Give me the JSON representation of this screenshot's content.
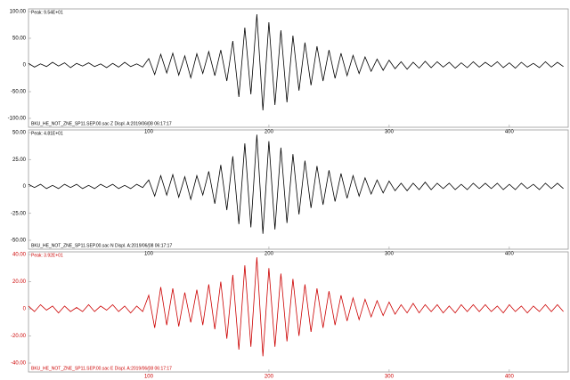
{
  "chart_data": [
    {
      "type": "line",
      "header": "Peak: 9.54E+01",
      "footer": "BKU_HE_NOT_ZNE_SP11.SEP.00.sac Z Displ. A:2019/06/08 06:17:17",
      "xlim": [
        0,
        449
      ],
      "xticks": [
        100,
        200,
        300,
        400
      ],
      "ylim": [
        -100,
        100
      ],
      "yticks": [
        {
          "value": 100,
          "label": "100.00"
        },
        {
          "value": 50,
          "label": "50.00"
        },
        0,
        {
          "value": -50,
          "label": "-50.00"
        },
        {
          "value": -100,
          "label": "-100.00"
        }
      ],
      "x": [
        0,
        5,
        10,
        15,
        20,
        25,
        30,
        35,
        40,
        45,
        50,
        55,
        60,
        65,
        70,
        75,
        80,
        85,
        90,
        95,
        100,
        105,
        110,
        115,
        120,
        125,
        130,
        135,
        140,
        145,
        150,
        155,
        160,
        165,
        170,
        175,
        180,
        185,
        190,
        195,
        200,
        205,
        210,
        215,
        220,
        225,
        230,
        235,
        240,
        245,
        250,
        255,
        260,
        265,
        270,
        275,
        280,
        285,
        290,
        295,
        300,
        305,
        310,
        315,
        320,
        325,
        330,
        335,
        340,
        345,
        350,
        355,
        360,
        365,
        370,
        375,
        380,
        385,
        390,
        395,
        400,
        405,
        410,
        415,
        420,
        425,
        430,
        435,
        440,
        445
      ],
      "series": [
        {
          "color": "#000000",
          "values": [
            3,
            -4,
            2,
            -3,
            5,
            -2,
            4,
            -5,
            3,
            -2,
            4,
            -3,
            2,
            -5,
            3,
            -4,
            5,
            -3,
            2,
            -4,
            12,
            -18,
            20,
            -15,
            22,
            -19,
            17,
            -24,
            21,
            -16,
            25,
            -20,
            28,
            -30,
            45,
            -60,
            70,
            -55,
            95,
            -85,
            80,
            -75,
            65,
            -70,
            55,
            -48,
            42,
            -38,
            35,
            -30,
            28,
            -25,
            22,
            -20,
            18,
            -16,
            15,
            -12,
            11,
            -10,
            9,
            -7,
            6,
            -8,
            5,
            -6,
            7,
            -5,
            6,
            -4,
            5,
            -6,
            4,
            -5,
            6,
            -4,
            5,
            -3,
            6,
            -5,
            4,
            -6,
            5,
            -4,
            3,
            -5,
            6,
            -4,
            5,
            -3
          ]
        }
      ]
    },
    {
      "type": "line",
      "header": "Peak: 4.81E+01",
      "footer": "BKU_HE_NOT_ZNE_SP11.SEP.00.sac N Displ. A:2019/06/08 06:17:17",
      "xlim": [
        0,
        449
      ],
      "xticks": [
        100,
        200,
        300,
        400
      ],
      "ylim": [
        -50,
        50
      ],
      "yticks": [
        {
          "value": 50,
          "label": "50.00"
        },
        {
          "value": 25,
          "label": "25.00"
        },
        0,
        {
          "value": -25,
          "label": "-25.00"
        },
        {
          "value": -50,
          "label": "-50.00"
        }
      ],
      "x": [
        0,
        5,
        10,
        15,
        20,
        25,
        30,
        35,
        40,
        45,
        50,
        55,
        60,
        65,
        70,
        75,
        80,
        85,
        90,
        95,
        100,
        105,
        110,
        115,
        120,
        125,
        130,
        135,
        140,
        145,
        150,
        155,
        160,
        165,
        170,
        175,
        180,
        185,
        190,
        195,
        200,
        205,
        210,
        215,
        220,
        225,
        230,
        235,
        240,
        245,
        250,
        255,
        260,
        265,
        270,
        275,
        280,
        285,
        290,
        295,
        300,
        305,
        310,
        315,
        320,
        325,
        330,
        335,
        340,
        345,
        350,
        355,
        360,
        365,
        370,
        375,
        380,
        385,
        390,
        395,
        400,
        405,
        410,
        415,
        420,
        425,
        430,
        435,
        440,
        445
      ],
      "series": [
        {
          "color": "#000000",
          "values": [
            2,
            -1,
            2,
            -2,
            1,
            -2,
            2,
            -1,
            2,
            -2,
            1,
            -2,
            2,
            -1,
            2,
            -2,
            1,
            -2,
            2,
            -1,
            6,
            -9,
            10,
            -8,
            11,
            -10,
            9,
            -12,
            10,
            -8,
            14,
            -16,
            20,
            -22,
            28,
            -35,
            40,
            -38,
            48,
            -44,
            42,
            -40,
            36,
            -34,
            30,
            -26,
            24,
            -20,
            19,
            -17,
            15,
            -14,
            12,
            -11,
            10,
            -9,
            8,
            -7,
            6,
            -6,
            5,
            -4,
            3,
            -4,
            3,
            -3,
            4,
            -3,
            3,
            -2,
            3,
            -3,
            2,
            -3,
            3,
            -2,
            3,
            -2,
            3,
            -3,
            2,
            -3,
            3,
            -2,
            2,
            -3,
            3,
            -2,
            3,
            -2
          ]
        }
      ]
    },
    {
      "type": "line",
      "header": "Peak: 3.92E+01",
      "footer": "BKU_HE_NOT_ZNE_SP11.SEP.00.sac E Displ. A:2019/06/08 06:17:17",
      "xlim": [
        0,
        449
      ],
      "xticks": [
        100,
        200,
        300,
        400
      ],
      "ylim": [
        -40,
        40
      ],
      "yticks": [
        {
          "value": 40,
          "label": "40.00"
        },
        {
          "value": 20,
          "label": "20.00"
        },
        0,
        {
          "value": -20,
          "label": "-20.00"
        },
        {
          "value": -40,
          "label": "-40.00"
        }
      ],
      "x": [
        0,
        5,
        10,
        15,
        20,
        25,
        30,
        35,
        40,
        45,
        50,
        55,
        60,
        65,
        70,
        75,
        80,
        85,
        90,
        95,
        100,
        105,
        110,
        115,
        120,
        125,
        130,
        135,
        140,
        145,
        150,
        155,
        160,
        165,
        170,
        175,
        180,
        185,
        190,
        195,
        200,
        205,
        210,
        215,
        220,
        225,
        230,
        235,
        240,
        245,
        250,
        255,
        260,
        265,
        270,
        275,
        280,
        285,
        290,
        295,
        300,
        305,
        310,
        315,
        320,
        325,
        330,
        335,
        340,
        345,
        350,
        355,
        360,
        365,
        370,
        375,
        380,
        385,
        390,
        395,
        400,
        405,
        410,
        415,
        420,
        425,
        430,
        435,
        440,
        445
      ],
      "series": [
        {
          "color": "#cc0000",
          "values": [
            2,
            -2,
            3,
            -1,
            2,
            -3,
            2,
            -2,
            1,
            -2,
            3,
            -2,
            2,
            -1,
            3,
            -2,
            2,
            -3,
            2,
            -2,
            10,
            -14,
            16,
            -12,
            15,
            -13,
            12,
            -10,
            14,
            -12,
            18,
            -15,
            20,
            -22,
            25,
            -30,
            32,
            -28,
            38,
            -35,
            30,
            -28,
            26,
            -24,
            22,
            -20,
            18,
            -17,
            15,
            -14,
            13,
            -12,
            10,
            -9,
            8,
            -8,
            7,
            -6,
            6,
            -5,
            5,
            -4,
            3,
            -3,
            4,
            -3,
            3,
            -2,
            3,
            -3,
            2,
            -3,
            3,
            -2,
            3,
            -2,
            3,
            -2,
            2,
            -3,
            3,
            -2,
            2,
            -3,
            2,
            -2,
            3,
            -2,
            3,
            -2
          ]
        }
      ]
    }
  ]
}
